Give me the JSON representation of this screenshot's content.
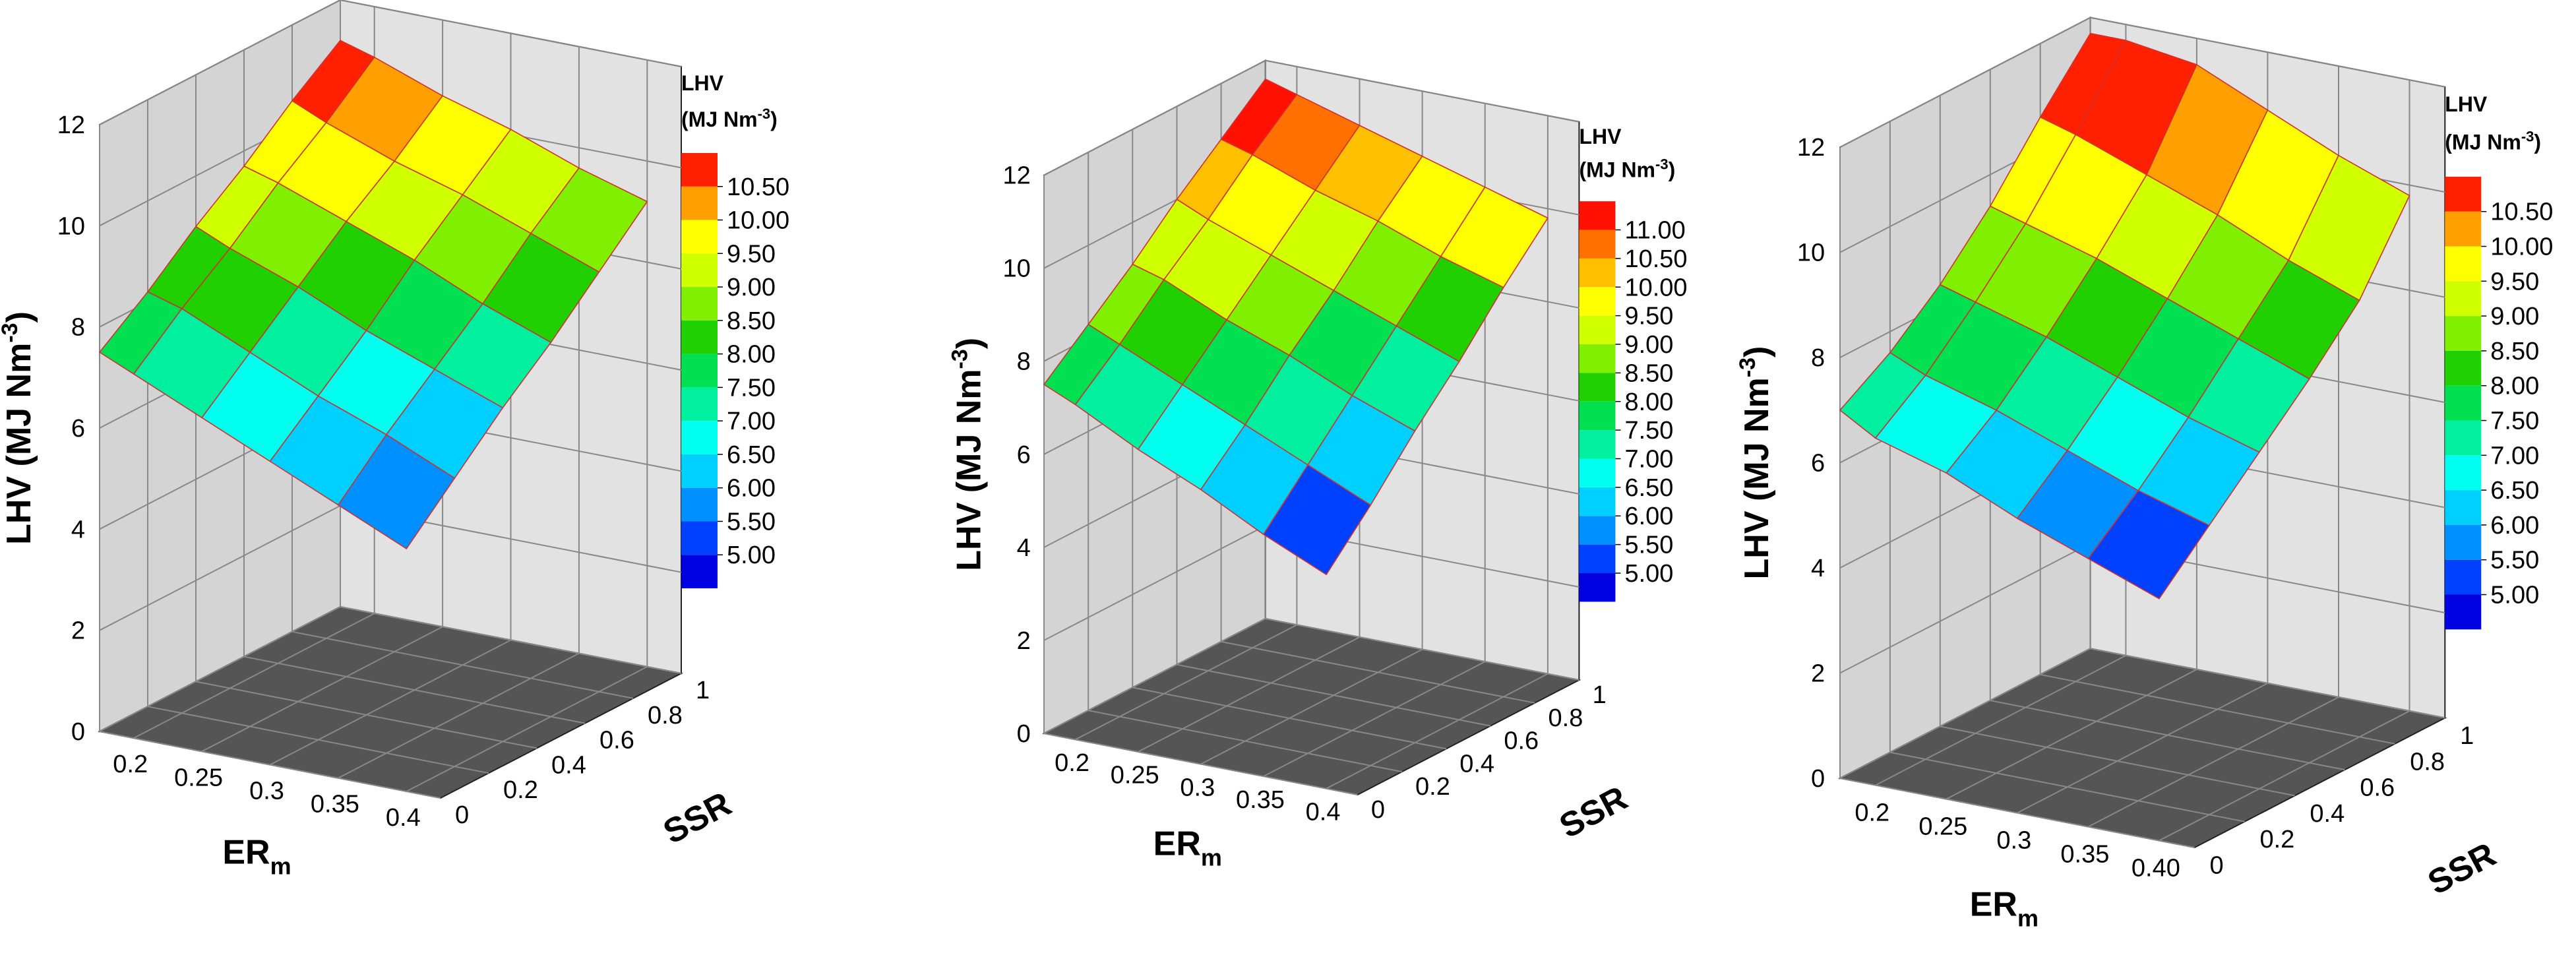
{
  "chart_data": [
    {
      "type": "surface",
      "z_label": [
        "LHV (MJ Nm",
        "-3",
        ")"
      ],
      "x_label": [
        "ER",
        "m"
      ],
      "y_label": "SSR",
      "legend_title": "LHV",
      "legend_unit": [
        "(MJ Nm",
        "-3",
        ")"
      ],
      "x": [
        0.175,
        0.2,
        0.25,
        0.3,
        0.35,
        0.4
      ],
      "y": [
        0,
        0.2,
        0.4,
        0.6,
        0.8,
        1
      ],
      "z": [
        [
          7.5,
          7.2,
          6.6,
          6.0,
          5.4,
          4.8
        ],
        [
          8.2,
          8.0,
          7.4,
          6.8,
          6.3,
          5.7
        ],
        [
          9.0,
          8.7,
          8.2,
          7.6,
          7.1,
          6.6
        ],
        [
          9.7,
          9.5,
          9.0,
          8.5,
          7.9,
          7.4
        ],
        [
          10.5,
          10.2,
          9.7,
          9.3,
          8.8,
          8.3
        ],
        [
          11.2,
          11.0,
          10.5,
          10.1,
          9.6,
          9.2
        ]
      ],
      "xlim": [
        0.175,
        0.425
      ],
      "ylim": [
        0,
        1
      ],
      "zlim": [
        0,
        12
      ],
      "xticks": [
        0.2,
        0.25,
        0.3,
        0.35,
        0.4
      ],
      "yticks": [
        0,
        0.2,
        0.4,
        0.6,
        0.8,
        1
      ],
      "zticks": [
        0,
        2,
        4,
        6,
        8,
        10,
        12
      ],
      "levels": [
        {
          "value": 5,
          "label": "5.00"
        },
        {
          "value": 5.5,
          "label": "5.50"
        },
        {
          "value": 6,
          "label": "6.00"
        },
        {
          "value": 6.5,
          "label": "6.50"
        },
        {
          "value": 7,
          "label": "7.00"
        },
        {
          "value": 7.5,
          "label": "7.50"
        },
        {
          "value": 8,
          "label": "8.00"
        },
        {
          "value": 8.5,
          "label": "8.50"
        },
        {
          "value": 9,
          "label": "9.00"
        },
        {
          "value": 9.5,
          "label": "9.50"
        },
        {
          "value": 10,
          "label": "10.00"
        },
        {
          "value": 10.5,
          "label": "10.50"
        }
      ],
      "colors": [
        "#0000e0",
        "#0040ff",
        "#0090ff",
        "#00d0ff",
        "#00ffee",
        "#00f0a0",
        "#00e050",
        "#20d000",
        "#80f000",
        "#d0ff00",
        "#ffff00",
        "#ffa000",
        "#ff2000"
      ]
    },
    {
      "type": "surface",
      "z_label": [
        "LHV (MJ Nm",
        "-3",
        ")"
      ],
      "x_label": [
        "ER",
        "m"
      ],
      "y_label": "SSR",
      "legend_title": "LHV",
      "legend_unit": [
        "(MJ Nm",
        "-3",
        ")"
      ],
      "x": [
        0.175,
        0.2,
        0.25,
        0.3,
        0.35,
        0.4
      ],
      "y": [
        0,
        0.2,
        0.4,
        0.6,
        0.8,
        1
      ],
      "z": [
        [
          7.5,
          7.2,
          6.5,
          5.9,
          5.2,
          4.6
        ],
        [
          8.3,
          8.0,
          7.4,
          6.8,
          6.2,
          5.6
        ],
        [
          9.1,
          8.9,
          8.3,
          7.8,
          7.2,
          6.7
        ],
        [
          10.0,
          9.7,
          9.2,
          8.7,
          8.2,
          7.7
        ],
        [
          10.8,
          10.6,
          10.1,
          9.7,
          9.2,
          8.8
        ],
        [
          11.6,
          11.4,
          11.0,
          10.6,
          10.2,
          9.8
        ]
      ],
      "xlim": [
        0.175,
        0.425
      ],
      "ylim": [
        0,
        1
      ],
      "zlim": [
        0,
        12
      ],
      "xticks": [
        0.2,
        0.25,
        0.3,
        0.35,
        0.4
      ],
      "yticks": [
        0,
        0.2,
        0.4,
        0.6,
        0.8,
        1
      ],
      "zticks": [
        0,
        2,
        4,
        6,
        8,
        10,
        12
      ],
      "levels": [
        {
          "value": 5,
          "label": "5.00"
        },
        {
          "value": 5.5,
          "label": "5.50"
        },
        {
          "value": 6,
          "label": "6.00"
        },
        {
          "value": 6.5,
          "label": "6.50"
        },
        {
          "value": 7,
          "label": "7.00"
        },
        {
          "value": 7.5,
          "label": "7.50"
        },
        {
          "value": 8,
          "label": "8.00"
        },
        {
          "value": 8.5,
          "label": "8.50"
        },
        {
          "value": 9,
          "label": "9.00"
        },
        {
          "value": 9.5,
          "label": "9.50"
        },
        {
          "value": 10,
          "label": "10.00"
        },
        {
          "value": 10.5,
          "label": "10.50"
        },
        {
          "value": 11,
          "label": "11.00"
        }
      ],
      "colors": [
        "#0000e0",
        "#0040ff",
        "#0090ff",
        "#00d0ff",
        "#00ffee",
        "#00f0a0",
        "#00e050",
        "#20d000",
        "#80f000",
        "#d0ff00",
        "#ffff00",
        "#ffc000",
        "#ff7000",
        "#ff1000"
      ]
    },
    {
      "type": "surface",
      "z_label": [
        "LHV (MJ Nm",
        "-3",
        ")"
      ],
      "x_label": [
        "ER",
        "m"
      ],
      "y_label": "SSR",
      "legend_title": "LHV",
      "legend_unit": [
        "(MJ Nm",
        "-3",
        ")"
      ],
      "x": [
        0.175,
        0.2,
        0.25,
        0.3,
        0.35,
        0.4
      ],
      "y": [
        0,
        0.2,
        0.4,
        0.6,
        0.8,
        1
      ],
      "z": [
        [
          7.0,
          6.6,
          6.2,
          5.6,
          5.1,
          4.6
        ],
        [
          7.6,
          7.3,
          6.9,
          6.4,
          5.9,
          5.5
        ],
        [
          8.4,
          8.2,
          7.8,
          7.3,
          6.8,
          6.4
        ],
        [
          9.4,
          9.2,
          8.8,
          8.3,
          7.8,
          7.3
        ],
        [
          10.6,
          10.4,
          9.9,
          9.4,
          8.8,
          8.3
        ],
        [
          11.7,
          11.7,
          11.5,
          10.9,
          10.3,
          9.8
        ]
      ],
      "xlim": [
        0.175,
        0.425
      ],
      "ylim": [
        0,
        1
      ],
      "zlim": [
        0,
        12
      ],
      "xticks": [
        0.2,
        0.25,
        0.3,
        0.35,
        {
          "value": 0.4,
          "label": "0.40"
        }
      ],
      "yticks": [
        0,
        0.2,
        0.4,
        0.6,
        0.8,
        1
      ],
      "zticks": [
        0,
        2,
        4,
        6,
        8,
        10,
        12
      ],
      "levels": [
        {
          "value": 5,
          "label": "5.00"
        },
        {
          "value": 5.5,
          "label": "5.50"
        },
        {
          "value": 6,
          "label": "6.00"
        },
        {
          "value": 6.5,
          "label": "6.50"
        },
        {
          "value": 7,
          "label": "7.00"
        },
        {
          "value": 7.5,
          "label": "7.50"
        },
        {
          "value": 8,
          "label": "8.00"
        },
        {
          "value": 8.5,
          "label": "8.50"
        },
        {
          "value": 9,
          "label": "9.00"
        },
        {
          "value": 9.5,
          "label": "9.50"
        },
        {
          "value": 10,
          "label": "10.00"
        },
        {
          "value": 10.5,
          "label": "10.50"
        }
      ],
      "colors": [
        "#0000e0",
        "#0040ff",
        "#0090ff",
        "#00d0ff",
        "#00ffee",
        "#00f0a0",
        "#00e050",
        "#20d000",
        "#80f000",
        "#d0ff00",
        "#ffff00",
        "#ffa000",
        "#ff2000"
      ]
    }
  ]
}
